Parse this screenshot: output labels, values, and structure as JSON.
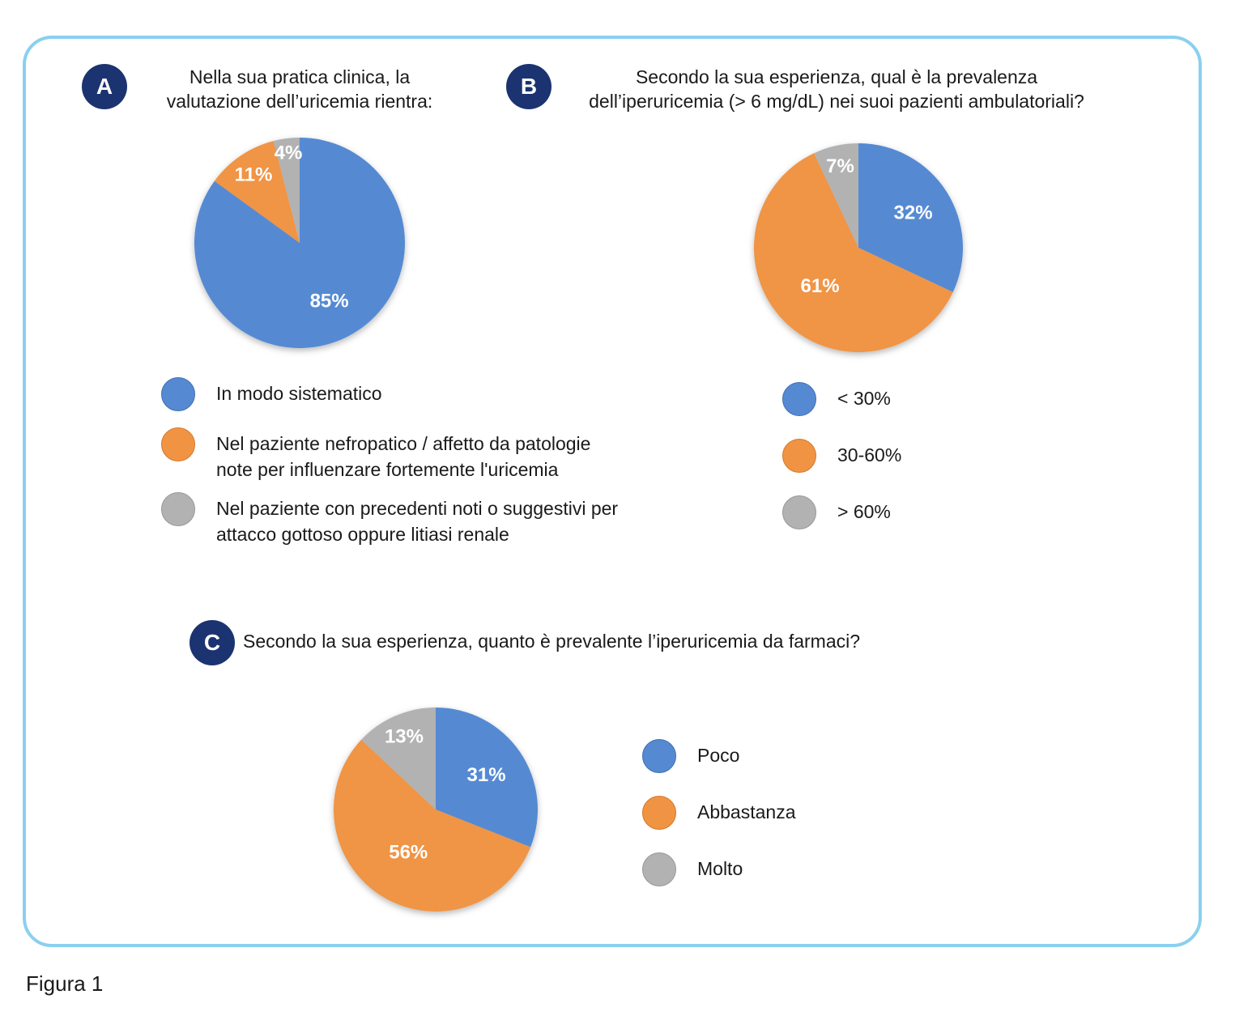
{
  "colors": {
    "blue": "#558ad3",
    "orange": "#f09444",
    "gray": "#b2b2b2",
    "badge": "#1b3370",
    "frame": "#8ad0ef"
  },
  "caption": "Figura 1",
  "chart_data": [
    {
      "type": "pie",
      "panel_label": "A",
      "title_lines": [
        "Nella sua pratica clinica, la",
        "valutazione dell’uricemia rientra:"
      ],
      "slices": [
        {
          "label": "In modo sistematico",
          "value": 85,
          "display": "85%",
          "color": "#558ad3"
        },
        {
          "label": "Nel paziente nefropatico / affetto da patologie\nnote per influenzare fortemente l'uricemia",
          "value": 11,
          "display": "11%",
          "color": "#f09444"
        },
        {
          "label": "Nel paziente con precedenti noti o suggestivi per\nattacco gottoso oppure litiasi renale",
          "value": 4,
          "display": "4%",
          "color": "#b2b2b2"
        }
      ]
    },
    {
      "type": "pie",
      "panel_label": "B",
      "title_lines": [
        "Secondo la sua esperienza, qual è la prevalenza",
        "dell’iperuricemia (> 6 mg/dL) nei suoi pazienti ambulatoriali?"
      ],
      "slices": [
        {
          "label": "< 30%",
          "value": 32,
          "display": "32%",
          "color": "#558ad3"
        },
        {
          "label": "30-60%",
          "value": 61,
          "display": "61%",
          "color": "#f09444"
        },
        {
          "label": "> 60%",
          "value": 7,
          "display": "7%",
          "color": "#b2b2b2"
        }
      ]
    },
    {
      "type": "pie",
      "panel_label": "C",
      "title_lines": [
        "Secondo la sua esperienza, quanto è prevalente l’iperuricemia da farmaci?"
      ],
      "slices": [
        {
          "label": "Poco",
          "value": 31,
          "display": "31%",
          "color": "#558ad3"
        },
        {
          "label": "Abbastanza",
          "value": 56,
          "display": "56%",
          "color": "#f09444"
        },
        {
          "label": "Molto",
          "value": 13,
          "display": "13%",
          "color": "#b2b2b2"
        }
      ]
    }
  ]
}
